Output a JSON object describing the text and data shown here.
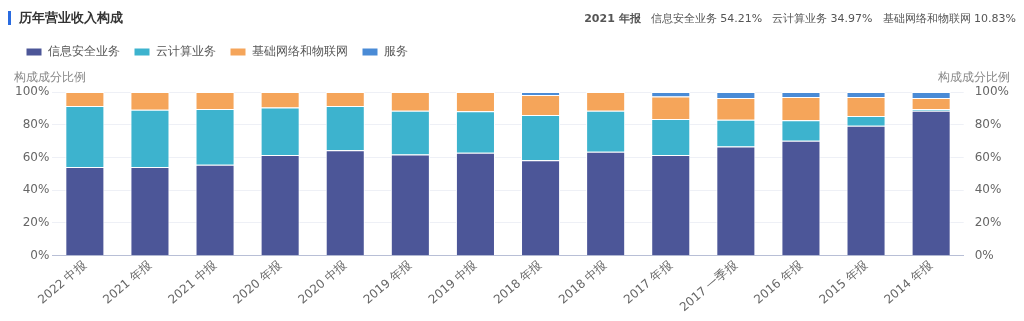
{
  "chart_data": {
    "type": "bar",
    "title": "历年营业收入构成",
    "stacked": true,
    "ylabel": "构成成分比例",
    "y2label": "构成成分比例",
    "categories": [
      "2022 中报",
      "2021 年报",
      "2021 中报",
      "2020 年报",
      "2020 中报",
      "2019 年报",
      "2019 中报",
      "2018 年报",
      "2018 中报",
      "2017 年报",
      "2017 一季报",
      "2016 年报",
      "2015 年报",
      "2014 年报"
    ],
    "series": [
      {
        "name": "信息安全业务",
        "color": "#4c5698",
        "values": [
          54.2,
          54.21,
          55.6,
          61.5,
          64.4,
          61.9,
          62.9,
          58.3,
          63.5,
          61.5,
          66.7,
          70.2,
          79.4,
          88.5
        ]
      },
      {
        "name": "云计算业务",
        "color": "#3db3ce",
        "values": [
          37.3,
          34.97,
          34.0,
          29.1,
          27.1,
          26.6,
          25.4,
          27.7,
          25.0,
          22.0,
          16.4,
          12.5,
          6.0,
          1.1
        ]
      },
      {
        "name": "基础网络和物联网",
        "color": "#f5a55a",
        "values": [
          8.5,
          10.83,
          10.4,
          9.4,
          8.5,
          11.5,
          11.7,
          12.1,
          11.5,
          13.8,
          13.2,
          14.2,
          11.5,
          6.7
        ]
      },
      {
        "name": "服务",
        "color": "#4a8bd6",
        "values": [
          0,
          0,
          0,
          0,
          0,
          0,
          0,
          1.9,
          0,
          2.7,
          3.7,
          3.1,
          3.1,
          3.7
        ]
      }
    ],
    "ylim": [
      0,
      100
    ],
    "yticks": [
      {
        "value": 0,
        "label": "0%"
      },
      {
        "value": 20,
        "label": "20%"
      },
      {
        "value": 40,
        "label": "40%"
      },
      {
        "value": 60,
        "label": "60%"
      },
      {
        "value": 80,
        "label": "80%"
      },
      {
        "value": 100,
        "label": "100%"
      }
    ],
    "y2lim": [
      0,
      100
    ],
    "y2ticks": [
      {
        "value": 0,
        "label": "0%"
      },
      {
        "value": 20,
        "label": "20%"
      },
      {
        "value": 40,
        "label": "40%"
      },
      {
        "value": 60,
        "label": "60%"
      },
      {
        "value": 80,
        "label": "80%"
      },
      {
        "value": 100,
        "label": "100%"
      }
    ],
    "grid": "y",
    "legend": "top left",
    "annotations": [
      "2021 年报",
      "信息安全业务 54.21%",
      "云计算业务 34.97%",
      "基础网络和物联网 10.83%"
    ]
  }
}
